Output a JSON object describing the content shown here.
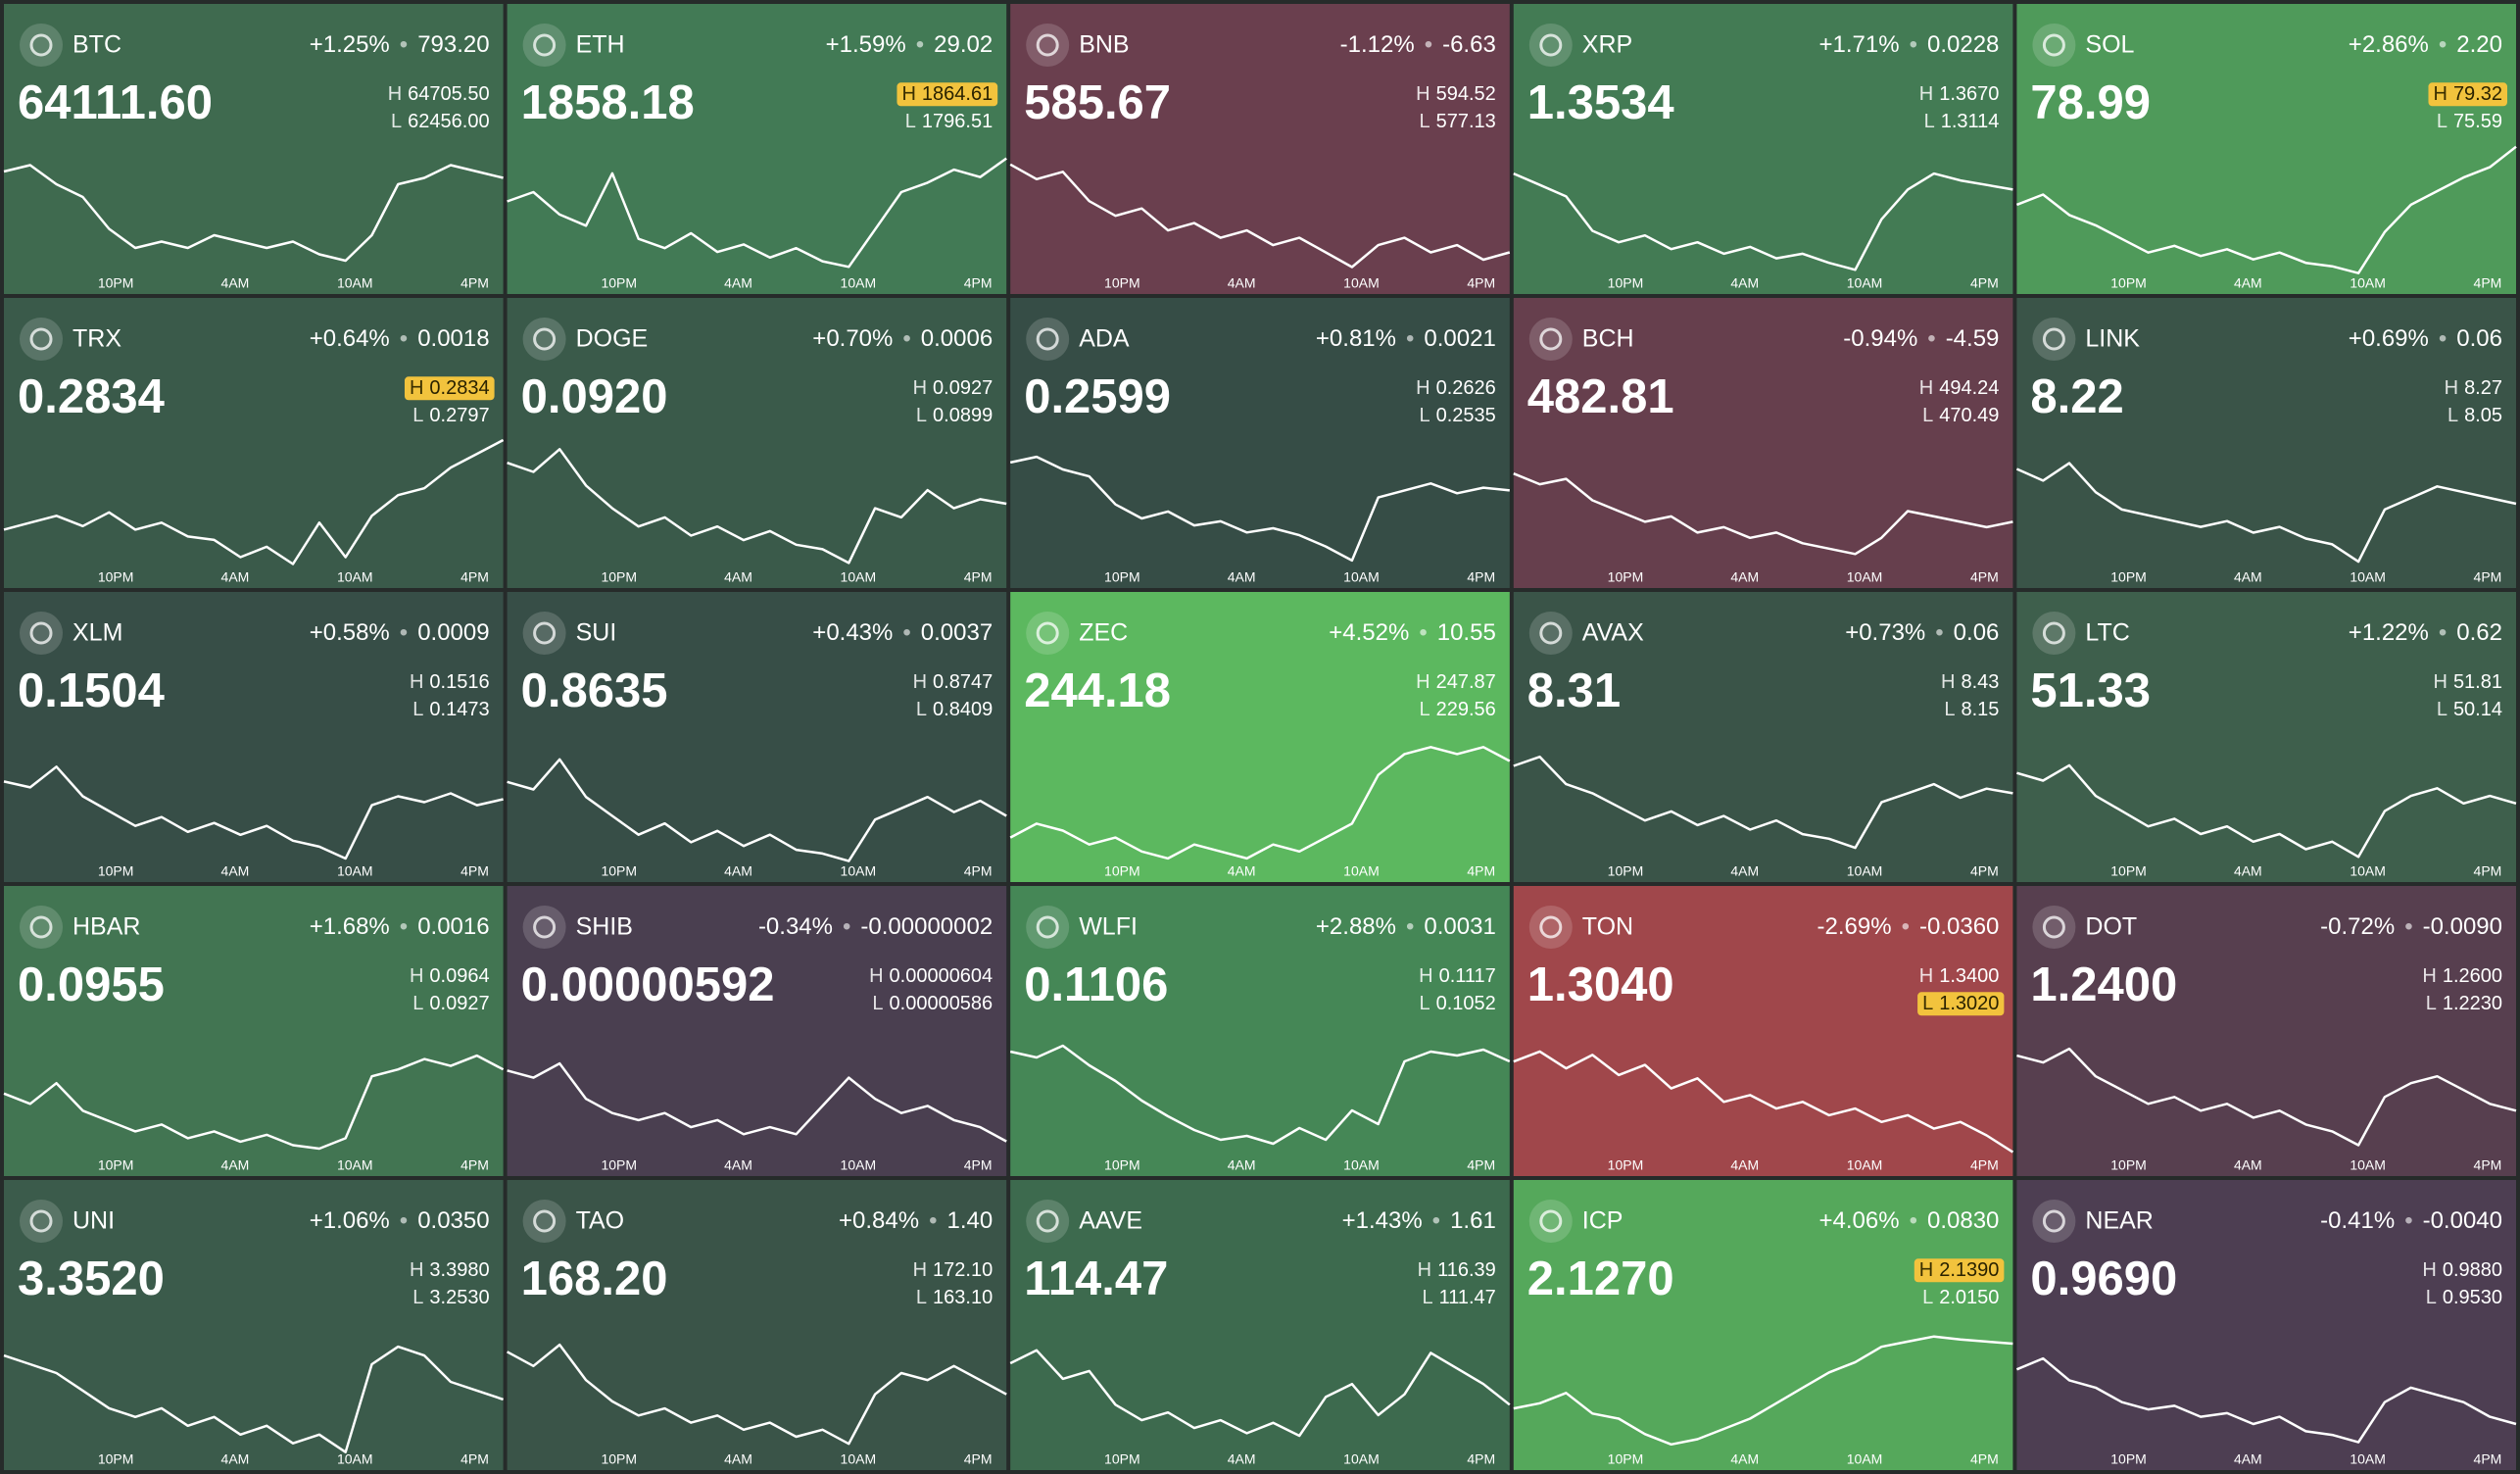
{
  "time_axis": [
    "10PM",
    "4AM",
    "10AM",
    "4PM"
  ],
  "high_label": "H",
  "low_label": "L",
  "separator": "•",
  "tiles": [
    {
      "symbol": "BTC",
      "change_pct": "+1.25%",
      "change_abs": "793.20",
      "price": "64111.60",
      "high": "64705.50",
      "low": "62456.00",
      "color": "#3f6a4f",
      "spark": [
        64255,
        64368,
        64030,
        63805,
        63243,
        62906,
        63018,
        62906,
        63131,
        63018,
        62906,
        63018,
        62793,
        62681,
        63131,
        64030,
        64143,
        64368,
        64255,
        64143
      ]
    },
    {
      "symbol": "ETH",
      "change_pct": "+1.59%",
      "change_abs": "29.02",
      "price": "1858.18",
      "high": "1864.61",
      "low": "1796.51",
      "highlight": "high",
      "color": "#427a55",
      "spark": [
        1835,
        1840,
        1828,
        1822,
        1850,
        1815,
        1810,
        1818,
        1808,
        1812,
        1805,
        1810,
        1803,
        1800,
        1820,
        1840,
        1845,
        1852,
        1848,
        1858
      ]
    },
    {
      "symbol": "BNB",
      "change_pct": "-1.12%",
      "change_abs": "-6.63",
      "price": "585.67",
      "high": "594.52",
      "low": "577.13",
      "color": "#6a3f4e",
      "spark": [
        592,
        590,
        591,
        587,
        585,
        586,
        583,
        584,
        582,
        583,
        581,
        582,
        580,
        578,
        581,
        582,
        580,
        581,
        579,
        580
      ]
    },
    {
      "symbol": "XRP",
      "change_pct": "+1.71%",
      "change_abs": "0.0228",
      "price": "1.3534",
      "high": "1.3670",
      "low": "1.3114",
      "color": "#437b54",
      "spark": [
        1.355,
        1.35,
        1.345,
        1.33,
        1.325,
        1.328,
        1.322,
        1.325,
        1.32,
        1.323,
        1.318,
        1.32,
        1.316,
        1.313,
        1.335,
        1.348,
        1.355,
        1.352,
        1.35,
        1.348
      ]
    },
    {
      "symbol": "SOL",
      "change_pct": "+2.86%",
      "change_abs": "2.20",
      "price": "78.99",
      "high": "79.32",
      "low": "75.59",
      "highlight": "high",
      "color": "#4f9a5a",
      "spark": [
        77.6,
        77.9,
        77.3,
        77.0,
        76.6,
        76.2,
        76.4,
        76.1,
        76.3,
        76.0,
        76.2,
        75.9,
        75.8,
        75.6,
        76.8,
        77.6,
        78.0,
        78.4,
        78.7,
        79.3
      ]
    },
    {
      "symbol": "TRX",
      "change_pct": "+0.64%",
      "change_abs": "0.0018",
      "price": "0.2834",
      "high": "0.2834",
      "low": "0.2797",
      "highlight": "high",
      "color": "#3a5a4a",
      "spark": [
        0.2808,
        0.281,
        0.2812,
        0.2809,
        0.2813,
        0.2808,
        0.281,
        0.2806,
        0.2805,
        0.28,
        0.2803,
        0.2798,
        0.281,
        0.28,
        0.2812,
        0.2818,
        0.282,
        0.2826,
        0.283,
        0.2834
      ]
    },
    {
      "symbol": "DOGE",
      "change_pct": "+0.70%",
      "change_abs": "0.0006",
      "price": "0.0920",
      "high": "0.0927",
      "low": "0.0899",
      "color": "#3a5a4a",
      "spark": [
        0.0922,
        0.092,
        0.0925,
        0.0917,
        0.0912,
        0.0908,
        0.091,
        0.0906,
        0.0908,
        0.0905,
        0.0907,
        0.0904,
        0.0903,
        0.09,
        0.0912,
        0.091,
        0.0916,
        0.0912,
        0.0914,
        0.0913
      ]
    },
    {
      "symbol": "ADA",
      "change_pct": "+0.81%",
      "change_abs": "0.0021",
      "price": "0.2599",
      "high": "0.2626",
      "low": "0.2535",
      "color": "#364d46",
      "spark": [
        0.261,
        0.2614,
        0.2605,
        0.26,
        0.258,
        0.257,
        0.2575,
        0.2565,
        0.2568,
        0.256,
        0.2563,
        0.2558,
        0.255,
        0.254,
        0.2585,
        0.259,
        0.2595,
        0.2588,
        0.2592,
        0.259
      ]
    },
    {
      "symbol": "BCH",
      "change_pct": "-0.94%",
      "change_abs": "-4.59",
      "price": "482.81",
      "high": "494.24",
      "low": "470.49",
      "color": "#663f4d",
      "spark": [
        488,
        486,
        487,
        483,
        481,
        479,
        480,
        477,
        478,
        476,
        477,
        475,
        474,
        473,
        476,
        481,
        480,
        479,
        478,
        479
      ]
    },
    {
      "symbol": "LINK",
      "change_pct": "+0.69%",
      "change_abs": "0.06",
      "price": "8.22",
      "high": "8.27",
      "low": "8.05",
      "color": "#3a5448",
      "spark": [
        8.22,
        8.2,
        8.23,
        8.18,
        8.15,
        8.14,
        8.13,
        8.12,
        8.13,
        8.11,
        8.12,
        8.1,
        8.09,
        8.06,
        8.15,
        8.17,
        8.19,
        8.18,
        8.17,
        8.16
      ]
    },
    {
      "symbol": "XLM",
      "change_pct": "+0.58%",
      "change_abs": "0.0009",
      "price": "0.1504",
      "high": "0.1516",
      "low": "0.1473",
      "color": "#374e47",
      "spark": [
        0.15,
        0.1498,
        0.1505,
        0.1495,
        0.149,
        0.1485,
        0.1488,
        0.1483,
        0.1486,
        0.1482,
        0.1485,
        0.148,
        0.1478,
        0.1474,
        0.1492,
        0.1495,
        0.1493,
        0.1496,
        0.1492,
        0.1494
      ]
    },
    {
      "symbol": "SUI",
      "change_pct": "+0.43%",
      "change_abs": "0.0037",
      "price": "0.8635",
      "high": "0.8747",
      "low": "0.8409",
      "color": "#374e47",
      "spark": [
        0.862,
        0.86,
        0.868,
        0.858,
        0.853,
        0.848,
        0.851,
        0.846,
        0.849,
        0.845,
        0.848,
        0.844,
        0.843,
        0.841,
        0.852,
        0.855,
        0.858,
        0.854,
        0.857,
        0.853
      ]
    },
    {
      "symbol": "ZEC",
      "change_pct": "+4.52%",
      "change_abs": "10.55",
      "price": "244.18",
      "high": "247.87",
      "low": "229.56",
      "color": "#5cb85f",
      "spark": [
        233,
        235,
        234,
        232,
        233,
        231,
        230,
        232,
        231,
        230,
        232,
        231,
        233,
        235,
        242,
        245,
        246,
        245,
        246,
        244
      ]
    },
    {
      "symbol": "AVAX",
      "change_pct": "+0.73%",
      "change_abs": "0.06",
      "price": "8.31",
      "high": "8.43",
      "low": "8.15",
      "color": "#3a5448",
      "spark": [
        8.36,
        8.38,
        8.32,
        8.3,
        8.27,
        8.24,
        8.26,
        8.23,
        8.25,
        8.22,
        8.24,
        8.21,
        8.2,
        8.18,
        8.28,
        8.3,
        8.32,
        8.29,
        8.31,
        8.3
      ]
    },
    {
      "symbol": "LTC",
      "change_pct": "+1.22%",
      "change_abs": "0.62",
      "price": "51.33",
      "high": "51.81",
      "low": "50.14",
      "color": "#3e5f4c",
      "spark": [
        51.3,
        51.2,
        51.4,
        51.0,
        50.8,
        50.6,
        50.7,
        50.5,
        50.6,
        50.4,
        50.5,
        50.3,
        50.4,
        50.2,
        50.8,
        51.0,
        51.1,
        50.9,
        51.0,
        50.9
      ]
    },
    {
      "symbol": "HBAR",
      "change_pct": "+1.68%",
      "change_abs": "0.0016",
      "price": "0.0955",
      "high": "0.0964",
      "low": "0.0927",
      "color": "#427552",
      "spark": [
        0.0945,
        0.0942,
        0.0948,
        0.094,
        0.0937,
        0.0934,
        0.0936,
        0.0932,
        0.0934,
        0.0931,
        0.0933,
        0.093,
        0.0929,
        0.0932,
        0.095,
        0.0952,
        0.0955,
        0.0953,
        0.0956,
        0.0952
      ]
    },
    {
      "symbol": "SHIB",
      "change_pct": "-0.34%",
      "change_abs": "-0.00000002",
      "price": "0.00000592",
      "high": "0.00000604",
      "low": "0.00000586",
      "color": "#4a3f50",
      "spark": [
        5.98e-06,
        5.97e-06,
        5.99e-06,
        5.94e-06,
        5.92e-06,
        5.91e-06,
        5.92e-06,
        5.9e-06,
        5.91e-06,
        5.89e-06,
        5.9e-06,
        5.89e-06,
        5.93e-06,
        5.97e-06,
        5.94e-06,
        5.92e-06,
        5.93e-06,
        5.91e-06,
        5.9e-06,
        5.88e-06
      ]
    },
    {
      "symbol": "WLFI",
      "change_pct": "+2.88%",
      "change_abs": "0.0031",
      "price": "0.1106",
      "high": "0.1117",
      "low": "0.1052",
      "color": "#458756",
      "spark": [
        0.1105,
        0.1102,
        0.1108,
        0.1098,
        0.109,
        0.108,
        0.1072,
        0.1065,
        0.106,
        0.1062,
        0.1058,
        0.1066,
        0.106,
        0.1075,
        0.1068,
        0.11,
        0.1105,
        0.1103,
        0.1106,
        0.11
      ]
    },
    {
      "symbol": "TON",
      "change_pct": "-2.69%",
      "change_abs": "-0.0360",
      "price": "1.3040",
      "high": "1.3400",
      "low": "1.3020",
      "highlight": "low",
      "color": "#a0474b",
      "spark": [
        1.33,
        1.333,
        1.328,
        1.332,
        1.326,
        1.329,
        1.322,
        1.325,
        1.318,
        1.32,
        1.316,
        1.318,
        1.314,
        1.316,
        1.312,
        1.314,
        1.31,
        1.312,
        1.308,
        1.303
      ]
    },
    {
      "symbol": "DOT",
      "change_pct": "-0.72%",
      "change_abs": "-0.0090",
      "price": "1.2400",
      "high": "1.2600",
      "low": "1.2230",
      "color": "#573f4f",
      "spark": [
        1.252,
        1.25,
        1.254,
        1.246,
        1.242,
        1.238,
        1.24,
        1.236,
        1.238,
        1.234,
        1.236,
        1.232,
        1.23,
        1.226,
        1.24,
        1.244,
        1.246,
        1.242,
        1.238,
        1.236
      ]
    },
    {
      "symbol": "UNI",
      "change_pct": "+1.06%",
      "change_abs": "0.0350",
      "price": "3.3520",
      "high": "3.3980",
      "low": "3.2530",
      "color": "#3b5b4b",
      "spark": [
        3.36,
        3.35,
        3.34,
        3.32,
        3.3,
        3.29,
        3.3,
        3.28,
        3.29,
        3.27,
        3.28,
        3.26,
        3.27,
        3.25,
        3.35,
        3.37,
        3.36,
        3.33,
        3.32,
        3.31
      ]
    },
    {
      "symbol": "TAO",
      "change_pct": "+0.84%",
      "change_abs": "1.40",
      "price": "168.20",
      "high": "172.10",
      "low": "163.10",
      "color": "#3a5448",
      "spark": [
        170.0,
        169.0,
        170.5,
        168.0,
        166.5,
        165.5,
        166.0,
        165.0,
        165.5,
        164.5,
        165.0,
        164.0,
        164.5,
        163.5,
        167.0,
        168.5,
        168.0,
        169.0,
        168.0,
        167.0
      ]
    },
    {
      "symbol": "AAVE",
      "change_pct": "+1.43%",
      "change_abs": "1.61",
      "price": "114.47",
      "high": "116.39",
      "low": "111.47",
      "color": "#3d6a4e",
      "spark": [
        114.8,
        115.3,
        114.2,
        114.5,
        113.2,
        112.6,
        112.9,
        112.3,
        112.6,
        112.1,
        112.5,
        112.0,
        113.5,
        114.0,
        112.8,
        113.6,
        115.2,
        114.6,
        114.0,
        113.2
      ]
    },
    {
      "symbol": "ICP",
      "change_pct": "+4.06%",
      "change_abs": "0.0830",
      "price": "2.1270",
      "high": "2.1390",
      "low": "2.0150",
      "highlight": "high",
      "color": "#55a85b",
      "spark": [
        2.055,
        2.06,
        2.07,
        2.05,
        2.045,
        2.03,
        2.02,
        2.025,
        2.035,
        2.045,
        2.06,
        2.075,
        2.09,
        2.1,
        2.115,
        2.12,
        2.125,
        2.122,
        2.12,
        2.118
      ]
    },
    {
      "symbol": "NEAR",
      "change_pct": "-0.41%",
      "change_abs": "-0.0040",
      "price": "0.9690",
      "high": "0.9880",
      "low": "0.9530",
      "color": "#4d3e52",
      "spark": [
        0.975,
        0.978,
        0.972,
        0.97,
        0.966,
        0.964,
        0.965,
        0.962,
        0.963,
        0.96,
        0.962,
        0.958,
        0.957,
        0.955,
        0.966,
        0.97,
        0.968,
        0.966,
        0.962,
        0.96
      ]
    }
  ]
}
